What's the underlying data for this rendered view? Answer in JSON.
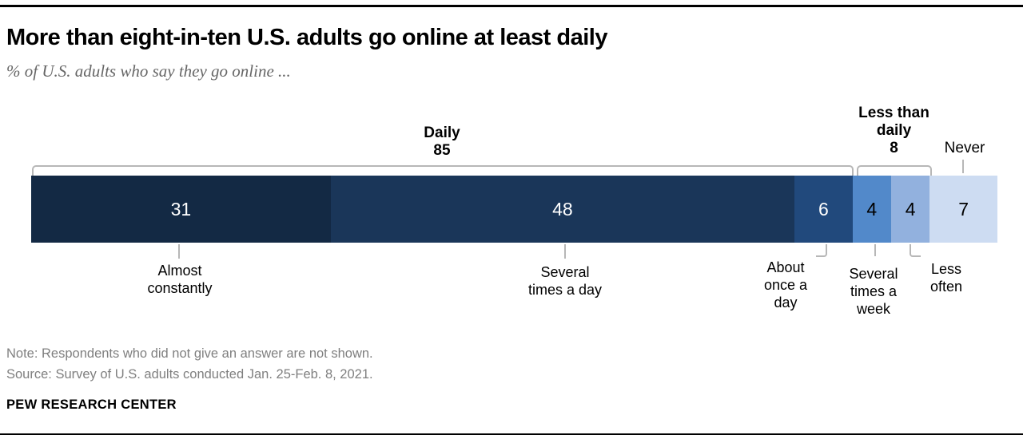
{
  "chart_data": {
    "type": "bar",
    "variant": "horizontal-stacked-100",
    "title": "More than eight-in-ten U.S. adults go online at least daily",
    "subtitle": "% of U.S. adults who say they go online ...",
    "unit": "% of U.S. adults",
    "axis": {
      "xlim": [
        0,
        100
      ],
      "grid": false,
      "axes_visible": false
    },
    "segments": [
      {
        "label": "Almost constantly",
        "value": 31,
        "color": "#132944",
        "text_color": "#ffffff"
      },
      {
        "label": "Several times a day",
        "value": 48,
        "color": "#1a3659",
        "text_color": "#ffffff"
      },
      {
        "label": "About once a day",
        "value": 6,
        "color": "#21497c",
        "text_color": "#ffffff"
      },
      {
        "label": "Several times a week",
        "value": 4,
        "color": "#5289ca",
        "text_color": "#000000"
      },
      {
        "label": "Less often",
        "value": 4,
        "color": "#92b1de",
        "text_color": "#000000"
      },
      {
        "label": "Never",
        "value": 7,
        "color": "#cddcf2",
        "text_color": "#000000"
      }
    ],
    "groups": [
      {
        "label": "Daily",
        "value": 85,
        "spans": [
          "Almost constantly",
          "Several times a day",
          "About once a day"
        ]
      },
      {
        "label": "Less than daily",
        "value": 8,
        "spans": [
          "Several times a week",
          "Less often"
        ]
      },
      {
        "label": "Never",
        "value": "",
        "spans": [
          "Never"
        ]
      }
    ],
    "callouts": [
      {
        "lines": [
          "Almost",
          "constantly"
        ]
      },
      {
        "lines": [
          "Several",
          "times a day"
        ]
      },
      {
        "lines": [
          "About",
          "once a",
          "day"
        ]
      },
      {
        "lines": [
          "Several",
          "times a",
          "week"
        ]
      },
      {
        "lines": [
          "Less",
          "often"
        ]
      }
    ]
  },
  "footer": {
    "note": "Note: Respondents who did not give an answer are not shown.",
    "source": "Source: Survey of U.S. adults conducted Jan. 25-Feb. 8, 2021.",
    "branding": "PEW RESEARCH CENTER"
  }
}
